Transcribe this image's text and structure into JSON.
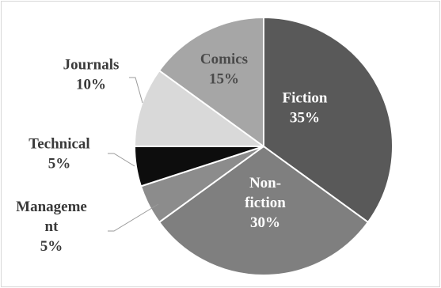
{
  "chart_data": {
    "type": "pie",
    "title": "",
    "slices": [
      {
        "label": "Fiction",
        "value": 35,
        "value_label": "35%",
        "color": "#595959",
        "text_color": "#ffffff",
        "label_lines": [
          "Fiction",
          "35%"
        ]
      },
      {
        "label": "Non-fiction",
        "value": 30,
        "value_label": "30%",
        "color": "#7f7f7f",
        "text_color": "#ffffff",
        "label_lines": [
          "Non-",
          "fiction",
          "30%"
        ]
      },
      {
        "label": "Management",
        "value": 5,
        "value_label": "5%",
        "color": "#8c8c8c",
        "text_color": "#3a3a3a",
        "label_lines": [
          "Manageme",
          "nt",
          "5%"
        ]
      },
      {
        "label": "Technical",
        "value": 5,
        "value_label": "5%",
        "color": "#0d0d0d",
        "text_color": "#3a3a3a",
        "label_lines": [
          "Technical",
          "5%"
        ]
      },
      {
        "label": "Journals",
        "value": 10,
        "value_label": "10%",
        "color": "#d9d9d9",
        "text_color": "#3a3a3a",
        "label_lines": [
          "Journals",
          "10%"
        ]
      },
      {
        "label": "Comics",
        "value": 15,
        "value_label": "15%",
        "color": "#a6a6a6",
        "text_color": "#4a4a4a",
        "label_lines": [
          "Comics",
          "15%"
        ]
      }
    ],
    "start_angle_deg": 0,
    "direction": "clockwise",
    "legend": "none"
  }
}
